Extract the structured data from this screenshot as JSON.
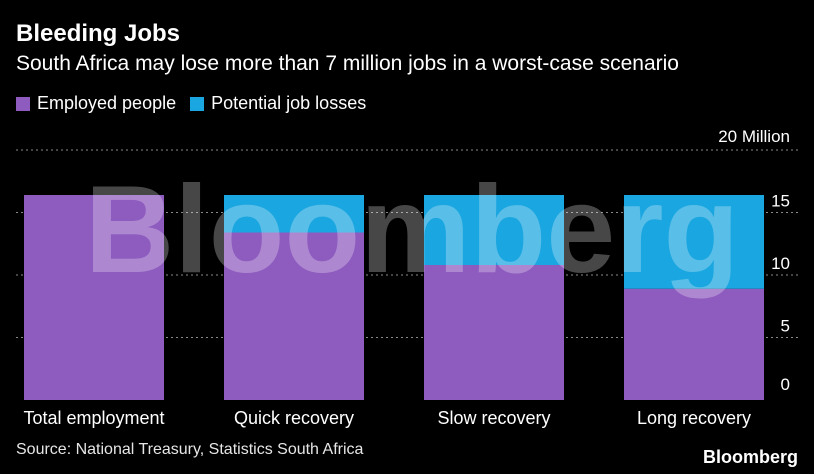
{
  "title": "Bleeding Jobs",
  "subtitle": "South Africa may lose more than 7 million jobs in a worst-case scenario",
  "legend": [
    {
      "label": "Employed people",
      "color": "#8e5bbf"
    },
    {
      "label": "Potential job losses",
      "color": "#1aa6e0"
    }
  ],
  "source": "Source: National Treasury, Statistics South Africa",
  "brand": "Bloomberg",
  "watermark": "Bloomberg",
  "chart_data": {
    "type": "bar",
    "stacked": true,
    "categories": [
      "Total employment",
      "Quick recovery",
      "Slow recovery",
      "Long recovery"
    ],
    "series": [
      {
        "name": "Employed people",
        "values": [
          16.4,
          13.4,
          10.8,
          8.9
        ],
        "color": "#8e5bbf"
      },
      {
        "name": "Potential job losses",
        "values": [
          0,
          3.0,
          5.6,
          7.5
        ],
        "color": "#1aa6e0"
      }
    ],
    "ylim": [
      0,
      20
    ],
    "yticks": [
      0,
      5,
      10,
      15,
      20
    ],
    "ytick_labels": [
      "0",
      "5",
      "10",
      "15",
      "20 Million"
    ],
    "y_axis_position": "right",
    "grid": true
  }
}
